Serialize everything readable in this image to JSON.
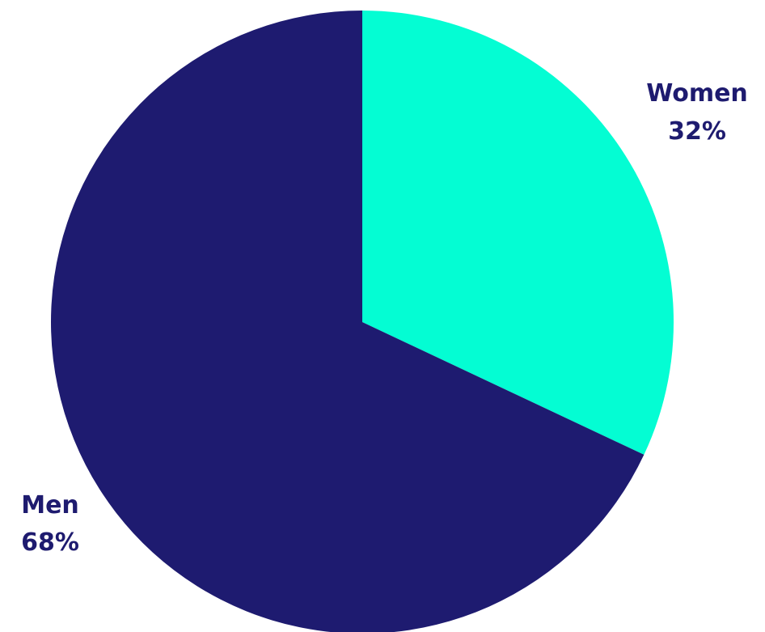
{
  "chart_data": {
    "type": "pie",
    "title": "",
    "slices": [
      {
        "label": "Women",
        "percent_text": "32%",
        "value": 32,
        "color": "#04fdd3"
      },
      {
        "label": "Men",
        "percent_text": "68%",
        "value": 68,
        "color": "#1e1b70"
      }
    ],
    "start_angle": "12 o'clock",
    "direction": "clockwise",
    "label_color": "#1e1b6f",
    "background": "#ffffff"
  }
}
